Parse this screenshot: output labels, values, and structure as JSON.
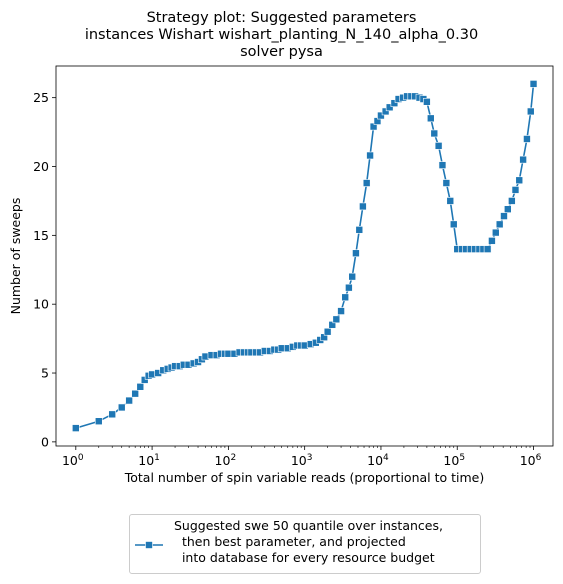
{
  "chart_data": {
    "type": "line",
    "title_lines": [
      "Strategy plot: Suggested parameters",
      "instances Wishart wishart_planting_N_140_alpha_0.30",
      "solver pysa"
    ],
    "xlabel": "Total number of spin variable reads (proportional to time)",
    "ylabel": "Number of sweeps",
    "x_scale": "log",
    "xlim": [
      0.55,
      1800000
    ],
    "ylim": [
      -0.3,
      27.3
    ],
    "grid": false,
    "legend_position": "bottom-center",
    "x_ticks": [
      {
        "value": 1,
        "base": "10",
        "exp": "0"
      },
      {
        "value": 10,
        "base": "10",
        "exp": "1"
      },
      {
        "value": 100,
        "base": "10",
        "exp": "2"
      },
      {
        "value": 1000,
        "base": "10",
        "exp": "3"
      },
      {
        "value": 10000,
        "base": "10",
        "exp": "4"
      },
      {
        "value": 100000,
        "base": "10",
        "exp": "5"
      },
      {
        "value": 1000000,
        "base": "10",
        "exp": "6"
      }
    ],
    "y_ticks": [
      0,
      5,
      10,
      15,
      20,
      25
    ],
    "series": [
      {
        "name": "Suggested swe 50 quantile over instances,\n  then best parameter, and projected\n  into database for every resource budget",
        "color": "#1f77b4",
        "marker": "square",
        "x": [
          1,
          2,
          3,
          4,
          5,
          6,
          7,
          8,
          9,
          10,
          12,
          14,
          16,
          18,
          20,
          23,
          26,
          30,
          35,
          40,
          45,
          50,
          60,
          70,
          80,
          90,
          100,
          120,
          140,
          160,
          180,
          200,
          230,
          260,
          300,
          350,
          400,
          450,
          500,
          600,
          700,
          800,
          900,
          1000,
          1200,
          1400,
          1600,
          1800,
          2000,
          2300,
          2600,
          3000,
          3400,
          3800,
          4200,
          4700,
          5200,
          5800,
          6500,
          7200,
          8000,
          9000,
          10000,
          11500,
          13000,
          15000,
          17000,
          19500,
          22000,
          25000,
          28000,
          32000,
          36000,
          40000,
          45000,
          50000,
          57000,
          64000,
          72000,
          81000,
          90000,
          100000,
          115000,
          130000,
          150000,
          170000,
          195000,
          220000,
          250000,
          285000,
          320000,
          360000,
          410000,
          460000,
          520000,
          580000,
          650000,
          730000,
          820000,
          920000,
          1000000
        ],
        "y": [
          1,
          1.5,
          2,
          2.5,
          3,
          3.5,
          4,
          4.5,
          4.8,
          4.9,
          5,
          5.2,
          5.3,
          5.4,
          5.5,
          5.5,
          5.6,
          5.6,
          5.7,
          5.8,
          6,
          6.2,
          6.3,
          6.3,
          6.4,
          6.4,
          6.4,
          6.4,
          6.5,
          6.5,
          6.5,
          6.5,
          6.5,
          6.5,
          6.6,
          6.6,
          6.7,
          6.7,
          6.8,
          6.8,
          6.9,
          7,
          7,
          7,
          7.1,
          7.2,
          7.4,
          7.6,
          8,
          8.5,
          8.9,
          9.5,
          10.5,
          11.2,
          12,
          13.7,
          15.4,
          17.1,
          18.8,
          20.8,
          22.9,
          23.3,
          23.7,
          24,
          24.3,
          24.6,
          24.9,
          25,
          25.1,
          25.1,
          25.1,
          25,
          24.9,
          24.7,
          23.5,
          22.4,
          21.5,
          20.1,
          18.8,
          17.5,
          15.8,
          14,
          14,
          14,
          14,
          14,
          14,
          14,
          14,
          14.6,
          15.2,
          15.8,
          16.4,
          16.9,
          17.5,
          18.3,
          19,
          20.5,
          22,
          24,
          26
        ]
      }
    ]
  }
}
